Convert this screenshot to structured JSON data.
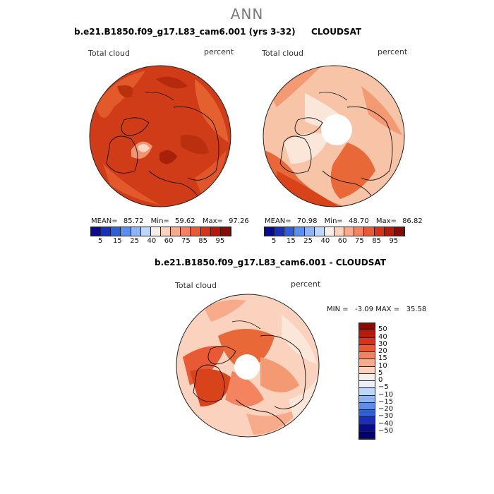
{
  "suptitle": "ANN",
  "panels": [
    {
      "title": "b.e21.B1850.f09_g17.L83_cam6.001 (yrs 3-32)",
      "left_label": "Total cloud",
      "right_label": "percent",
      "stats": {
        "mean_label": "MEAN=",
        "mean": "85.72",
        "min_label": "Min=",
        "min": "59.62",
        "max_label": "Max=",
        "max": "97.26"
      },
      "colorbar_ticks": [
        "5",
        "15",
        "25",
        "40",
        "60",
        "75",
        "85",
        "95"
      ],
      "colorbar_colors": [
        "#0a0a8c",
        "#1a2fb8",
        "#2f5fd8",
        "#5c8ef0",
        "#8fb4f6",
        "#bdd6fb",
        "#f7efe9",
        "#fbd2bd",
        "#f8ab8a",
        "#f3845f",
        "#e85a35",
        "#d5341a",
        "#b51a0a",
        "#8a0a06"
      ]
    },
    {
      "title": "CLOUDSAT",
      "left_label": "Total cloud",
      "right_label": "percent",
      "stats": {
        "mean_label": "MEAN=",
        "mean": "70.98",
        "min_label": "Min=",
        "min": "48.70",
        "max_label": "Max=",
        "max": "86.82"
      },
      "colorbar_ticks": [
        "5",
        "15",
        "25",
        "40",
        "60",
        "75",
        "85",
        "95"
      ],
      "colorbar_colors": [
        "#0a0a8c",
        "#1a2fb8",
        "#2f5fd8",
        "#5c8ef0",
        "#8fb4f6",
        "#bdd6fb",
        "#f7efe9",
        "#fbd2bd",
        "#f8ab8a",
        "#f3845f",
        "#e85a35",
        "#d5341a",
        "#b51a0a",
        "#8a0a06"
      ]
    }
  ],
  "diff": {
    "title": "b.e21.B1850.f09_g17.L83_cam6.001 - CLOUDSAT",
    "left_label": "Total cloud",
    "right_label": "percent",
    "minmax": "MIN =   -3.09 MAX =   35.58",
    "colorbar_ticks": [
      "50",
      "40",
      "30",
      "20",
      "15",
      "10",
      "5",
      "0",
      "-5",
      "-10",
      "-15",
      "-20",
      "-30",
      "-40",
      "-50"
    ],
    "colorbar_colors": [
      "#8a0a06",
      "#b51a0a",
      "#d5341a",
      "#e85a35",
      "#f3845f",
      "#f8ab8a",
      "#fbd2bd",
      "#f7efe9",
      "#e9f0fb",
      "#bdd6fb",
      "#8fb4f6",
      "#5c8ef0",
      "#2f5fd8",
      "#1a2fb8",
      "#0a0a8c",
      "#00006a"
    ]
  },
  "map_palette": {
    "dark_red": "#b8300e",
    "red": "#d8431a",
    "orange": "#e96838",
    "light_orange": "#f39a72",
    "peach": "#f8c4a8",
    "pale": "#fbe6da",
    "white": "#ffffff"
  }
}
